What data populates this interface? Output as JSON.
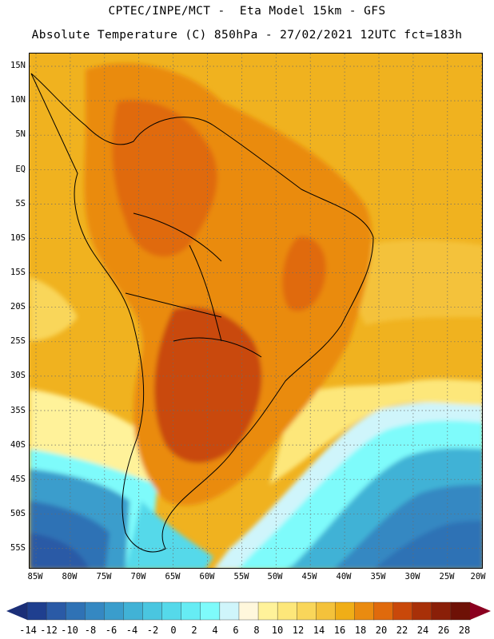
{
  "header": {
    "line1": "CPTEC/INPE/MCT -  Eta Model 15km - GFS",
    "line2": "Absolute Temperature (C) 850hPa - 27/02/2021 12UTC fct=183h"
  },
  "map": {
    "lat_labels": [
      "15N",
      "10N",
      "5N",
      "EQ",
      "5S",
      "10S",
      "15S",
      "20S",
      "25S",
      "30S",
      "35S",
      "40S",
      "45S",
      "50S",
      "55S"
    ],
    "lon_labels": [
      "85W",
      "80W",
      "75W",
      "70W",
      "65W",
      "60W",
      "55W",
      "50W",
      "45W",
      "40W",
      "35W",
      "30W",
      "25W",
      "20W"
    ]
  },
  "colorbar": {
    "labels": [
      "-14",
      "-12",
      "-10",
      "-8",
      "-6",
      "-4",
      "-2",
      "0",
      "2",
      "4",
      "6",
      "8",
      "10",
      "12",
      "14",
      "16",
      "18",
      "20",
      "22",
      "24",
      "26",
      "28"
    ],
    "colors": [
      "#1f3f8f",
      "#2a5aa6",
      "#2f72b5",
      "#3588c2",
      "#3a9dcc",
      "#41b2d6",
      "#4ac6e0",
      "#55d9ea",
      "#66ecf4",
      "#7efbfb",
      "#cff5fb",
      "#fff7dc",
      "#fff29a",
      "#fde77a",
      "#f9d65a",
      "#f4c23b",
      "#f0ae17",
      "#ea8b10",
      "#e06a0c",
      "#c9480a",
      "#a83008",
      "#8a1f08",
      "#6e1106",
      "#8b0020"
    ],
    "left_extend_color": "#1b2f78",
    "right_extend_color": "#8b0020"
  }
}
